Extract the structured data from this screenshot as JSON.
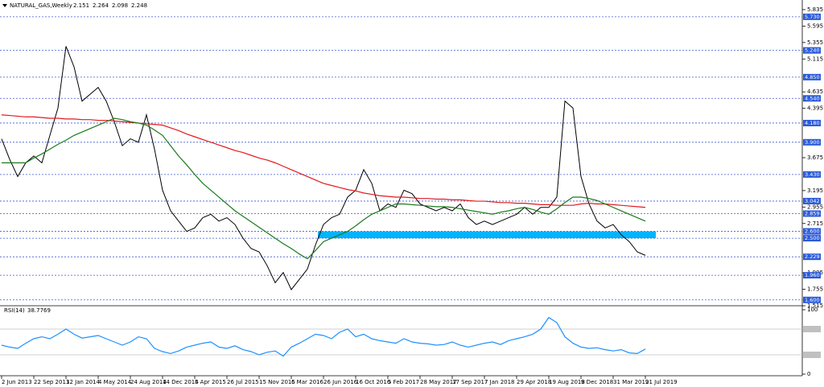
{
  "chart_data": [
    {
      "type": "line",
      "title": "NATURAL_GAS,Weekly",
      "ohlc": [
        2.151,
        2.264,
        2.098,
        2.248
      ],
      "categories": [
        "2 Jun 2013",
        null,
        null,
        null,
        "22 Sep 2013",
        null,
        null,
        null,
        "12 Jan 2014",
        null,
        null,
        null,
        "4 May 2014",
        null,
        null,
        null,
        "24 Aug 2014",
        null,
        null,
        null,
        "14 Dec 2014",
        null,
        null,
        null,
        "5 Apr 2015",
        null,
        null,
        null,
        "26 Jul 2015",
        null,
        null,
        null,
        "15 Nov 2015",
        null,
        null,
        null,
        "6 Mar 2016",
        null,
        null,
        null,
        "26 Jun 2016",
        null,
        null,
        null,
        "16 Oct 2016",
        null,
        null,
        null,
        "5 Feb 2017",
        null,
        null,
        null,
        "28 May 2017",
        null,
        null,
        null,
        "17 Sep 2017",
        null,
        null,
        null,
        "7 Jan 2018",
        null,
        null,
        null,
        "29 Apr 2018",
        null,
        null,
        null,
        "19 Aug 2018",
        null,
        null,
        null,
        "9 Dec 2018",
        null,
        null,
        null,
        "31 Mar 2019",
        null,
        null,
        null,
        "21 Jul 2019"
      ],
      "series": [
        {
          "color": "#000000",
          "values": [
            3.95,
            3.65,
            3.4,
            3.6,
            3.7,
            3.6,
            4.0,
            4.4,
            5.3,
            5.0,
            4.5,
            4.6,
            4.7,
            4.5,
            4.2,
            3.85,
            3.95,
            3.9,
            4.3,
            3.8,
            3.2,
            2.9,
            2.75,
            2.6,
            2.65,
            2.8,
            2.85,
            2.75,
            2.8,
            2.7,
            2.5,
            2.35,
            2.3,
            2.1,
            1.85,
            2.0,
            1.75,
            1.9,
            2.05,
            2.4,
            2.7,
            2.8,
            2.85,
            3.1,
            3.2,
            3.5,
            3.3,
            2.9,
            3.0,
            2.95,
            3.2,
            3.15,
            3.0,
            2.95,
            2.9,
            2.95,
            2.9,
            3.0,
            2.8,
            2.7,
            2.75,
            2.7,
            2.75,
            2.8,
            2.85,
            2.95,
            2.85,
            2.95,
            2.95,
            3.1,
            4.5,
            4.4,
            3.4,
            3.0,
            2.75,
            2.65,
            2.7,
            2.55,
            2.45,
            2.3,
            2.25
          ]
        },
        {
          "color": "#e31a1c",
          "values": [
            4.3,
            4.29,
            4.28,
            4.27,
            4.27,
            4.26,
            4.25,
            4.25,
            4.24,
            4.24,
            4.23,
            4.23,
            4.22,
            4.22,
            4.21,
            4.2,
            4.19,
            4.18,
            4.17,
            4.16,
            4.15,
            4.11,
            4.07,
            4.02,
            3.98,
            3.94,
            3.9,
            3.86,
            3.82,
            3.78,
            3.75,
            3.71,
            3.67,
            3.64,
            3.6,
            3.55,
            3.5,
            3.45,
            3.4,
            3.35,
            3.3,
            3.27,
            3.24,
            3.21,
            3.19,
            3.16,
            3.14,
            3.12,
            3.11,
            3.1,
            3.1,
            3.09,
            3.08,
            3.08,
            3.07,
            3.07,
            3.06,
            3.06,
            3.05,
            3.04,
            3.04,
            3.03,
            3.02,
            3.02,
            3.01,
            3.01,
            3.0,
            2.99,
            2.99,
            2.98,
            2.98,
            2.98,
            3.0,
            3.01,
            3.0,
            3.0,
            2.99,
            2.98,
            2.97,
            2.96,
            2.95
          ]
        },
        {
          "color": "#1a7a1a",
          "values": [
            3.6,
            3.6,
            3.6,
            3.6,
            3.67,
            3.73,
            3.8,
            3.87,
            3.93,
            4.0,
            4.05,
            4.1,
            4.15,
            4.2,
            4.25,
            4.23,
            4.2,
            4.18,
            4.15,
            4.08,
            4.0,
            3.85,
            3.7,
            3.57,
            3.43,
            3.3,
            3.2,
            3.1,
            3.0,
            2.9,
            2.82,
            2.74,
            2.66,
            2.58,
            2.5,
            2.42,
            2.35,
            2.27,
            2.2,
            2.32,
            2.45,
            2.5,
            2.55,
            2.6,
            2.68,
            2.77,
            2.85,
            2.9,
            2.95,
            3.0,
            3.0,
            2.99,
            2.98,
            2.97,
            2.96,
            2.96,
            2.95,
            2.93,
            2.91,
            2.89,
            2.87,
            2.85,
            2.88,
            2.9,
            2.93,
            2.95,
            2.92,
            2.88,
            2.85,
            2.93,
            3.02,
            3.1,
            3.1,
            3.08,
            3.05,
            3.0,
            2.95,
            2.9,
            2.85,
            2.8,
            2.75
          ]
        }
      ],
      "ylim": [
        1.48,
        5.94
      ],
      "yticks": [
        5.835,
        5.595,
        5.355,
        5.115,
        4.635,
        4.395,
        3.675,
        3.195,
        2.955,
        2.715,
        1.995,
        1.755,
        1.515
      ],
      "levels": [
        {
          "value": 5.73,
          "label": "5.730"
        },
        {
          "value": 5.24,
          "label": "5.240"
        },
        {
          "value": 4.85,
          "label": "4.850"
        },
        {
          "value": 4.54,
          "label": "4.540"
        },
        {
          "value": 4.18,
          "label": "4.180"
        },
        {
          "value": 3.9,
          "label": "3.900"
        },
        {
          "value": 3.43,
          "label": "3.430"
        },
        3.042,
        2.859,
        {
          "value": 2.6,
          "label": "2.600"
        },
        {
          "value": 2.5,
          "label": "2.500"
        },
        2.229,
        {
          "value": 1.96,
          "label": "1.960"
        },
        {
          "value": 1.6,
          "label": "1.600"
        }
      ],
      "level_color": "#3c5bd6",
      "zone": [
        2.5,
        2.6
      ],
      "zone_color": "#00b4ff"
    },
    {
      "type": "line",
      "title": "RSI(14)",
      "last": 38.7769,
      "series": [
        {
          "color": "#1e90ff",
          "values": [
            45,
            42,
            40,
            48,
            55,
            58,
            55,
            62,
            70,
            62,
            56,
            58,
            60,
            55,
            50,
            45,
            50,
            58,
            55,
            40,
            35,
            32,
            36,
            42,
            45,
            48,
            50,
            42,
            40,
            44,
            38,
            35,
            30,
            34,
            36,
            28,
            42,
            48,
            55,
            62,
            60,
            55,
            65,
            70,
            58,
            62,
            55,
            52,
            50,
            48,
            55,
            50,
            48,
            47,
            45,
            46,
            50,
            45,
            42,
            45,
            48,
            50,
            46,
            52,
            55,
            58,
            62,
            70,
            88,
            80,
            58,
            48,
            42,
            40,
            41,
            38,
            36,
            38,
            33,
            32,
            39
          ]
        }
      ],
      "ylim": [
        0,
        100
      ],
      "yticks": [
        100,
        0
      ],
      "levels": [
        70,
        30
      ],
      "level_color": "#c0c0c0"
    }
  ]
}
